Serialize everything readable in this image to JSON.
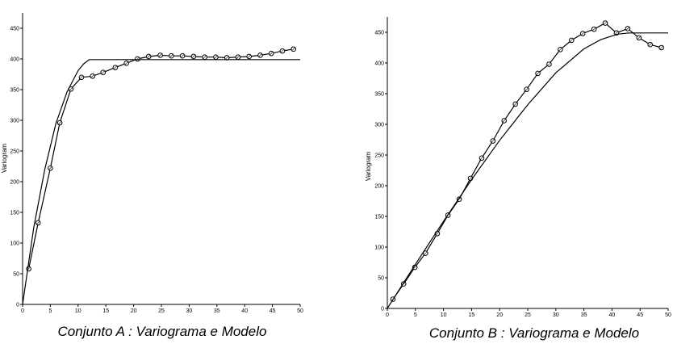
{
  "chart_data": [
    {
      "type": "line",
      "caption": "Conjunto A : Variograma e Modelo",
      "ylabel": "Variogram",
      "xlabel": "",
      "xlim": [
        0,
        50
      ],
      "ylim": [
        0,
        475
      ],
      "xticks": [
        0,
        5,
        10,
        15,
        20,
        25,
        30,
        35,
        40,
        45,
        50
      ],
      "yticks": [
        0,
        50,
        100,
        150,
        200,
        250,
        300,
        350,
        400,
        450
      ],
      "series": [
        {
          "role": "experimental",
          "x": [
            1.1,
            2.8,
            5.0,
            6.7,
            8.7,
            10.6,
            12.6,
            14.5,
            16.7,
            18.7,
            20.7,
            22.7,
            24.8,
            26.8,
            28.8,
            30.8,
            32.8,
            34.8,
            36.8,
            38.8,
            40.8,
            42.8,
            44.8,
            46.8,
            48.8
          ],
          "values": [
            58,
            133,
            222,
            296,
            351,
            370,
            372,
            378,
            386,
            393,
            400,
            404,
            406,
            405,
            405,
            404,
            403,
            403,
            402,
            403,
            404,
            406,
            409,
            413,
            416
          ]
        },
        {
          "role": "model",
          "x": [
            0,
            2,
            4,
            6,
            8,
            10,
            11,
            12,
            50
          ],
          "values": [
            0,
            125,
            220,
            295,
            346,
            381,
            392,
            399,
            399
          ]
        }
      ]
    },
    {
      "type": "line",
      "caption": "Conjunto B : Variograma e Modelo",
      "ylabel": "Variogram",
      "xlabel": "",
      "xlim": [
        0,
        50
      ],
      "ylim": [
        0,
        475
      ],
      "xticks": [
        0,
        5,
        10,
        15,
        20,
        25,
        30,
        35,
        40,
        45,
        50
      ],
      "yticks": [
        0,
        50,
        100,
        150,
        200,
        250,
        300,
        350,
        400,
        450
      ],
      "series": [
        {
          "role": "experimental",
          "x": [
            1.0,
            2.9,
            4.9,
            6.8,
            8.9,
            10.8,
            12.8,
            14.8,
            16.8,
            18.8,
            20.8,
            22.8,
            24.8,
            26.8,
            28.8,
            30.8,
            32.8,
            34.8,
            36.8,
            38.8,
            40.8,
            42.8,
            44.8,
            46.8,
            48.8
          ],
          "values": [
            15,
            40,
            67,
            90,
            122,
            152,
            178,
            212,
            245,
            273,
            306,
            333,
            357,
            383,
            398,
            422,
            437,
            448,
            455,
            465,
            449,
            456,
            441,
            430,
            425
          ]
        },
        {
          "role": "model",
          "x": [
            0,
            5,
            10,
            15,
            20,
            25,
            30,
            35,
            38,
            41,
            43,
            50
          ],
          "values": [
            0,
            72,
            142,
            210,
            274,
            332,
            384,
            423,
            438,
            447,
            449,
            449
          ]
        }
      ]
    }
  ]
}
